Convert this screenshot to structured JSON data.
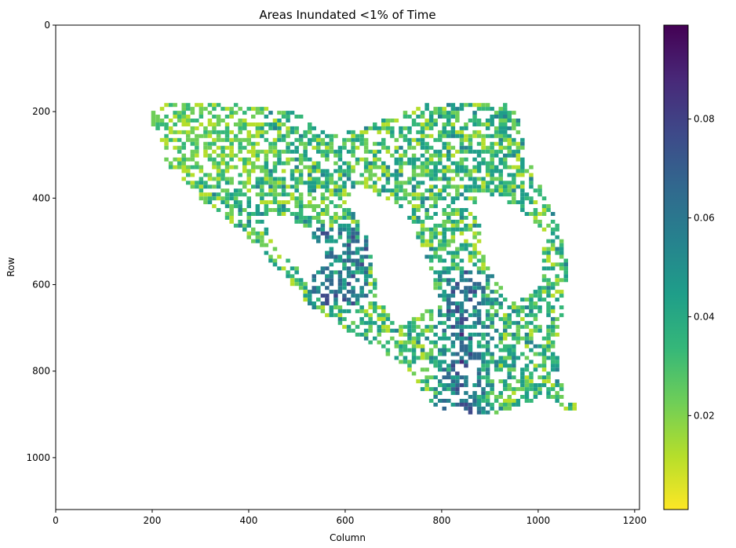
{
  "chart_data": {
    "type": "heatmap",
    "title": "Areas Inundated <1% of Time",
    "xlabel": "Column",
    "ylabel": "Row",
    "xlim": [
      0,
      1210
    ],
    "ylim": [
      1120,
      0
    ],
    "x_ticks": [
      0,
      200,
      400,
      600,
      800,
      1000,
      1200
    ],
    "x_tick_labels": [
      "0",
      "200",
      "400",
      "600",
      "800",
      "1000",
      "1200"
    ],
    "y_ticks": [
      0,
      200,
      400,
      600,
      800,
      1000
    ],
    "y_tick_labels": [
      "0",
      "200",
      "400",
      "600",
      "800",
      "1000"
    ],
    "colorbar": {
      "colormap": "viridis_r",
      "range": [
        0.001,
        0.099
      ],
      "ticks": [
        0.02,
        0.04,
        0.06,
        0.08
      ],
      "tick_labels": [
        "0.02",
        "0.04",
        "0.06",
        "0.08"
      ],
      "color_stops": [
        "#fde725",
        "#b5de2b",
        "#6ece58",
        "#35b779",
        "#1f9e89",
        "#26828e",
        "#31688e",
        "#3e4989",
        "#482878",
        "#440154"
      ]
    },
    "background_color": "#ffffff",
    "grid": false
  }
}
